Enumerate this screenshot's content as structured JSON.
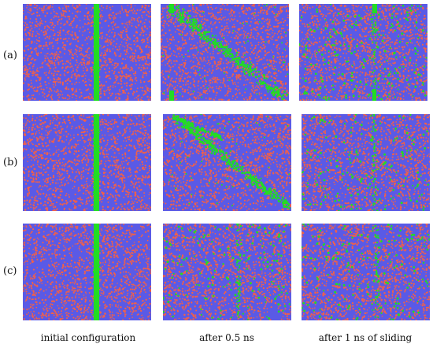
{
  "rows": [
    {
      "label": "(a)"
    },
    {
      "label": "(b)"
    },
    {
      "label": "(c)"
    }
  ],
  "columns": [
    {
      "caption": "initial configuration"
    },
    {
      "caption": "after 0.5 ns"
    },
    {
      "caption": "after 1 ns of sliding"
    }
  ],
  "colors": {
    "matrix_primary": "#5a5ae6",
    "matrix_secondary": "#f0604a",
    "band": "#22dd22"
  }
}
